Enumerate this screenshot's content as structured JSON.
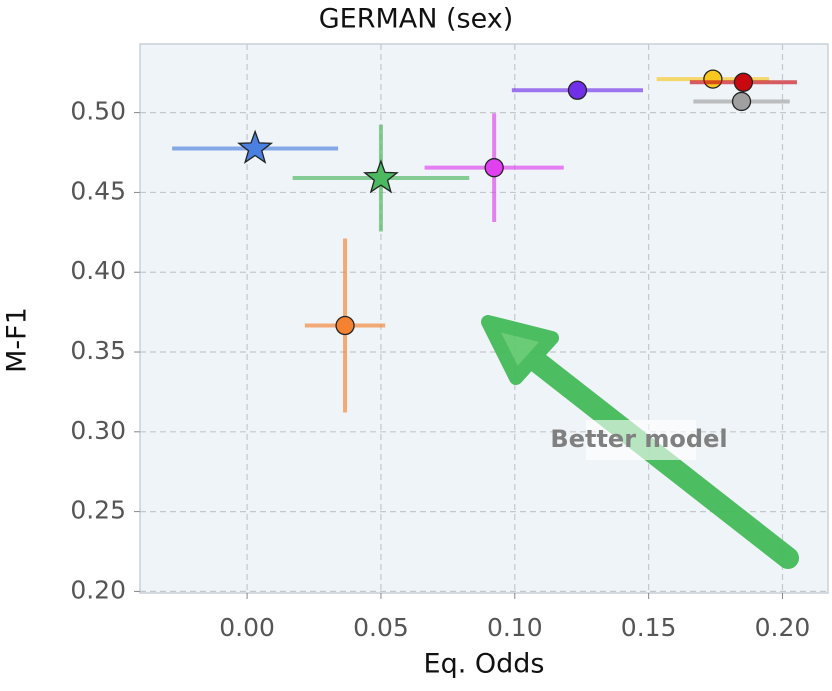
{
  "chart_data": {
    "type": "scatter",
    "title": "GERMAN (sex)",
    "x_label": "Eq. Odds",
    "y_label": "M-F1",
    "xlim": [
      -0.04,
      0.217
    ],
    "ylim": [
      0.199,
      0.543
    ],
    "xticks": [
      {
        "value": 0,
        "label": "0.00"
      },
      {
        "value": 0.05,
        "label": "0.05"
      },
      {
        "value": 0.1,
        "label": "0.10"
      },
      {
        "value": 0.15,
        "label": "0.15"
      },
      {
        "value": 0.2,
        "label": "0.20"
      }
    ],
    "yticks": [
      {
        "value": 0.2,
        "label": "0.20"
      },
      {
        "value": 0.25,
        "label": "0.25"
      },
      {
        "value": 0.3,
        "label": "0.30"
      },
      {
        "value": 0.35,
        "label": "0.35"
      },
      {
        "value": 0.4,
        "label": "0.40"
      },
      {
        "value": 0.45,
        "label": "0.45"
      },
      {
        "value": 0.5,
        "label": "0.50"
      }
    ],
    "grid": true,
    "annotation": "Better model",
    "series": [
      {
        "color": "#4a80e0",
        "marker": "star",
        "x": [
          0.003
        ],
        "values": [
          0.4775
        ],
        "xerr": [
          0.031
        ],
        "yerr": [
          0.001
        ]
      },
      {
        "color": "#4cb860",
        "marker": "star",
        "x": [
          0.05
        ],
        "values": [
          0.459
        ],
        "xerr": [
          0.033
        ],
        "yerr": [
          0.0335
        ]
      },
      {
        "color": "#f58231",
        "marker": "circle",
        "x": [
          0.0366
        ],
        "values": [
          0.3666
        ],
        "xerr": [
          0.015
        ],
        "yerr": [
          0.0545
        ]
      },
      {
        "color": "#e040f0",
        "marker": "circle",
        "x": [
          0.0923
        ],
        "values": [
          0.4655
        ],
        "xerr": [
          0.026
        ],
        "yerr": [
          0.034
        ]
      },
      {
        "color": "#7030e8",
        "marker": "circle",
        "x": [
          0.1234
        ],
        "values": [
          0.514
        ],
        "xerr": [
          0.0245
        ],
        "yerr": [
          0.005
        ]
      },
      {
        "color": "#f8c820",
        "marker": "circle",
        "x": [
          0.174
        ],
        "values": [
          0.521
        ],
        "xerr": [
          0.021
        ],
        "yerr": [
          0.004
        ]
      },
      {
        "color": "#c80a10",
        "marker": "circle",
        "x": [
          0.1854
        ],
        "values": [
          0.519
        ],
        "xerr": [
          0.02
        ],
        "yerr": [
          0.005
        ]
      },
      {
        "color": "#a0a0a0",
        "marker": "circle",
        "x": [
          0.1847
        ],
        "values": [
          0.507
        ],
        "xerr": [
          0.018
        ],
        "yerr": [
          0.004
        ]
      }
    ]
  }
}
